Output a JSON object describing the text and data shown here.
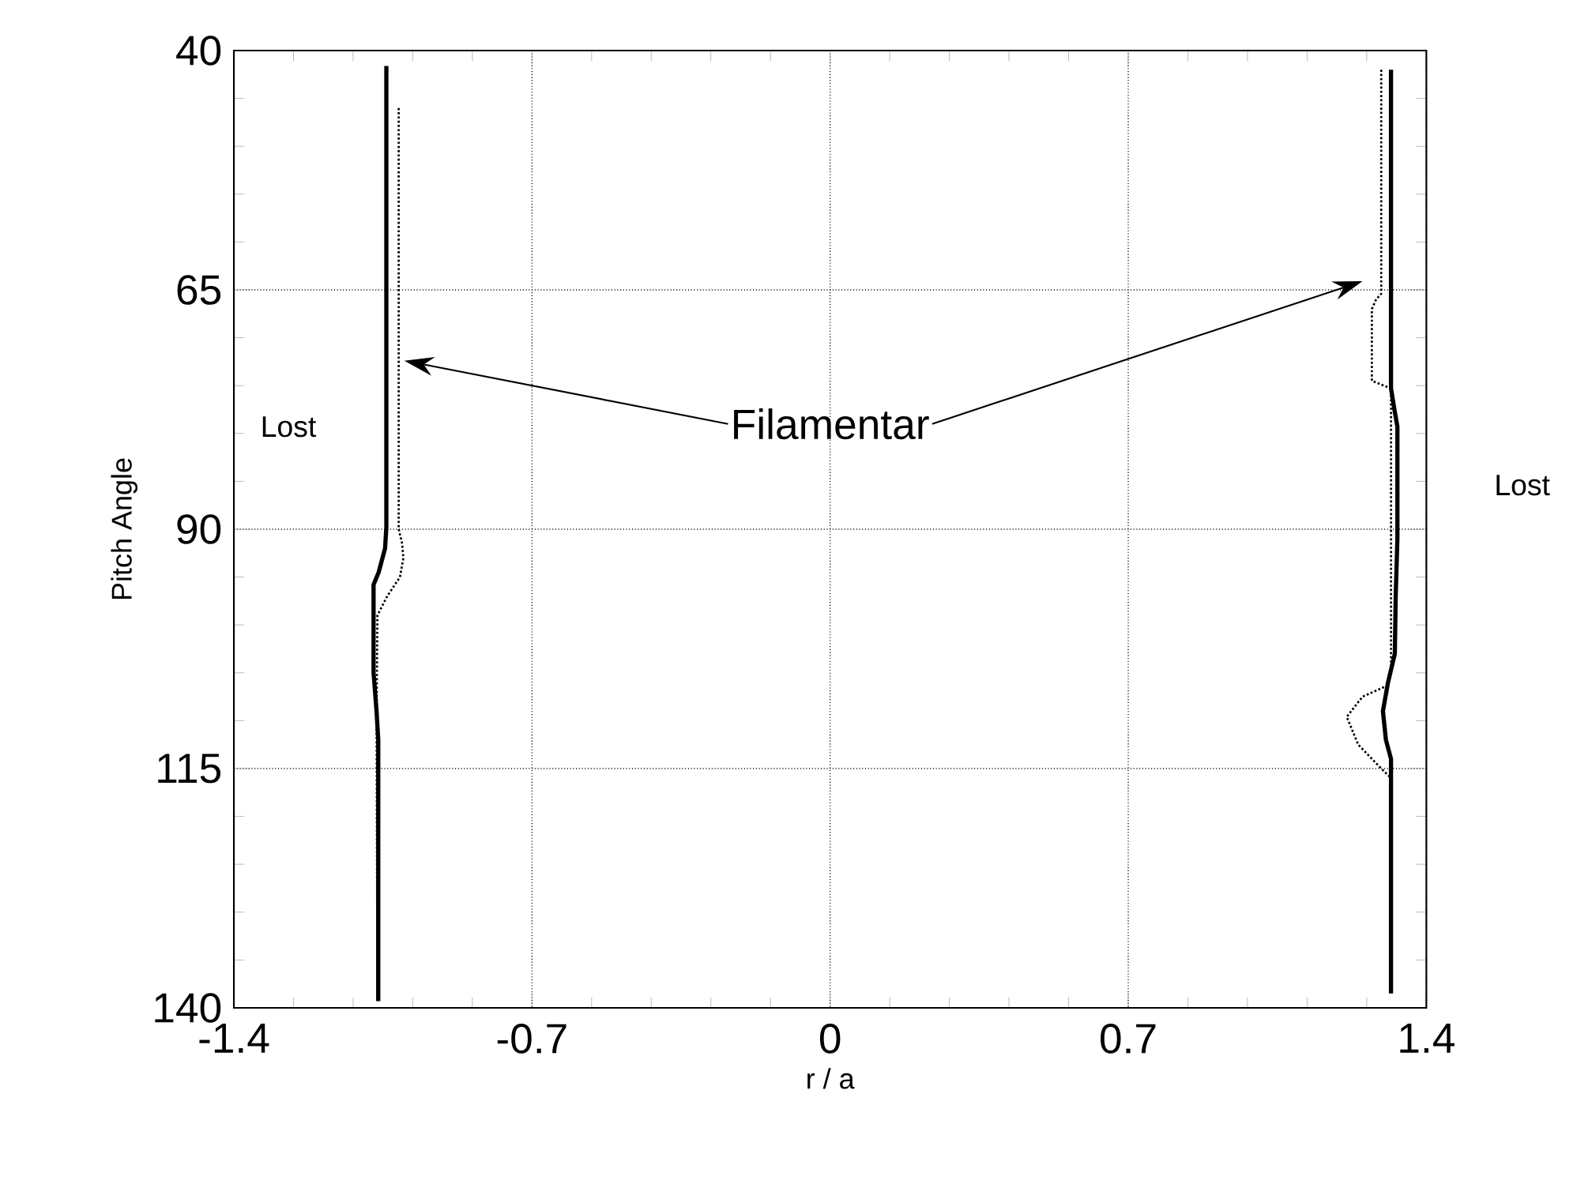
{
  "chart_data": {
    "type": "line",
    "xlabel": "r / a",
    "ylabel": "Pitch Angle",
    "xlim": [
      -1.4,
      1.4
    ],
    "ylim": [
      140,
      40
    ],
    "xticks": [
      -1.4,
      -0.7,
      0,
      0.7,
      1.4
    ],
    "yticks": [
      40,
      65,
      90,
      115,
      140
    ],
    "grid": true,
    "annotations": [
      "Lost",
      "Lost",
      "Filamentar"
    ],
    "series": [
      {
        "color": "#000000",
        "line_style": "solid",
        "x": [
          -1.042,
          -1.042,
          -1.045,
          -1.06,
          -1.072,
          -1.072,
          -1.065,
          -1.061,
          -1.061
        ],
        "values": [
          41.6,
          89.8,
          92,
          94.5,
          95.8,
          105,
          109,
          112,
          139.3
        ]
      },
      {
        "color": "#000000",
        "line_style": "dotted",
        "x": [
          -1.013,
          -1.013,
          -1.005,
          -1.002,
          -1.01,
          -1.04,
          -1.063,
          -1.065,
          -1.063
        ],
        "values": [
          46,
          90,
          91.5,
          93,
          95,
          97,
          99,
          110,
          139.3
        ]
      },
      {
        "color": "#000000",
        "line_style": "solid",
        "x": [
          1.317,
          1.317,
          1.325,
          1.332,
          1.332,
          1.328,
          1.326,
          1.31,
          1.298,
          1.305,
          1.317,
          1.317
        ],
        "values": [
          42,
          75.3,
          77.5,
          79.3,
          91,
          97,
          103,
          106,
          109,
          112,
          114,
          138.5
        ]
      },
      {
        "color": "#000000",
        "line_style": "dotted",
        "x": [
          1.294,
          1.294,
          1.282,
          1.272,
          1.272,
          1.317,
          1.317,
          1.31,
          1.25,
          1.213,
          1.24,
          1.294,
          1.317,
          1.317
        ],
        "values": [
          42,
          65.4,
          66,
          67,
          74.5,
          75.3,
          105,
          106.3,
          107.5,
          109.6,
          112.5,
          115,
          116,
          138.5
        ]
      }
    ]
  }
}
